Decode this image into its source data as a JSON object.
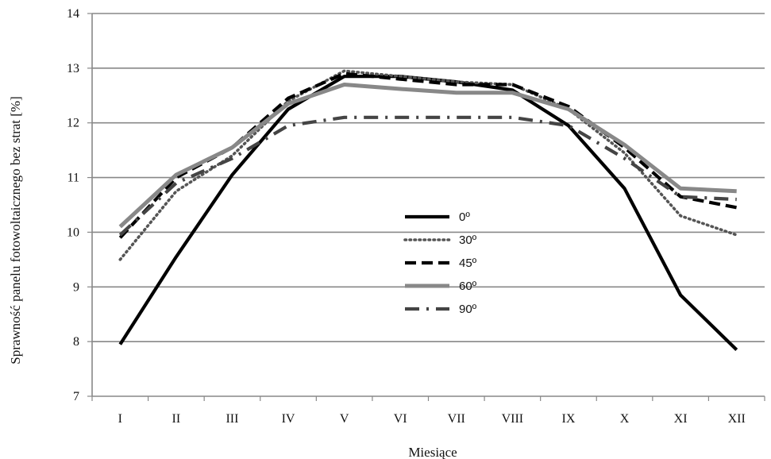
{
  "chart_data": {
    "type": "line",
    "title": "",
    "xlabel": "Miesiące",
    "ylabel": "Sprawność panelu fotowoltaicznego bez strat  [%]",
    "ylim": [
      7,
      14
    ],
    "yticks": [
      7,
      8,
      9,
      10,
      11,
      12,
      13,
      14
    ],
    "grid": true,
    "categories": [
      "I",
      "II",
      "III",
      "IV",
      "V",
      "VI",
      "VII",
      "VIII",
      "IX",
      "X",
      "XI",
      "XII"
    ],
    "legend_position": "center",
    "series": [
      {
        "name": "0º",
        "style": "solid",
        "color": "#000000",
        "values": [
          7.95,
          9.55,
          11.05,
          12.25,
          12.85,
          12.85,
          12.75,
          12.6,
          11.95,
          10.8,
          8.85,
          7.85
        ]
      },
      {
        "name": "30º",
        "style": "dotted",
        "color": "#555555",
        "values": [
          9.5,
          10.75,
          11.4,
          12.4,
          12.95,
          12.85,
          12.75,
          12.7,
          12.25,
          11.45,
          10.3,
          9.95
        ]
      },
      {
        "name": "45º",
        "style": "dashed",
        "color": "#000000",
        "values": [
          9.9,
          11.0,
          11.55,
          12.45,
          12.9,
          12.8,
          12.7,
          12.7,
          12.3,
          11.55,
          10.65,
          10.45
        ]
      },
      {
        "name": "60º",
        "style": "solid",
        "color": "#888888",
        "values": [
          10.1,
          11.05,
          11.55,
          12.35,
          12.7,
          12.62,
          12.55,
          12.55,
          12.25,
          11.6,
          10.8,
          10.75
        ]
      },
      {
        "name": "90º",
        "style": "dash-dot",
        "color": "#444444",
        "values": [
          9.95,
          10.9,
          11.35,
          11.95,
          12.1,
          12.1,
          12.1,
          12.1,
          11.95,
          11.35,
          10.65,
          10.6
        ]
      }
    ]
  }
}
